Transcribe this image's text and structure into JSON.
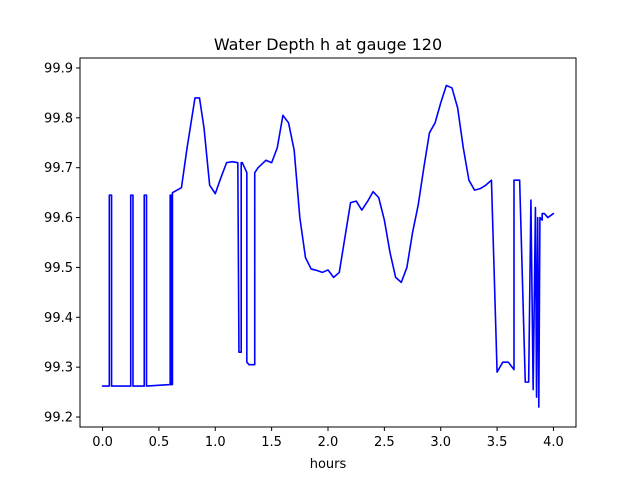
{
  "chart_data": {
    "type": "line",
    "title": "Water Depth h at gauge 120",
    "xlabel": "hours",
    "ylabel": "",
    "xlim": [
      -0.2,
      4.2
    ],
    "ylim": [
      99.18,
      99.92
    ],
    "x_ticks": [
      0.0,
      0.5,
      1.0,
      1.5,
      2.0,
      2.5,
      3.0,
      3.5,
      4.0
    ],
    "x_tick_labels": [
      "0.0",
      "0.5",
      "1.0",
      "1.5",
      "2.0",
      "2.5",
      "3.0",
      "3.5",
      "4.0"
    ],
    "y_ticks": [
      99.2,
      99.3,
      99.4,
      99.5,
      99.6,
      99.7,
      99.8,
      99.9
    ],
    "y_tick_labels": [
      "99.2",
      "99.3",
      "99.4",
      "99.5",
      "99.6",
      "99.7",
      "99.8",
      "99.9"
    ],
    "grid": false,
    "legend": "none",
    "series": [
      {
        "color": "#0000ff",
        "x": [
          0.0,
          0.06,
          0.06,
          0.08,
          0.08,
          0.25,
          0.25,
          0.27,
          0.27,
          0.37,
          0.37,
          0.39,
          0.39,
          0.6,
          0.6,
          0.61,
          0.61,
          0.62,
          0.62,
          0.7,
          0.75,
          0.82,
          0.86,
          0.9,
          0.95,
          1.0,
          1.05,
          1.1,
          1.15,
          1.2,
          1.21,
          1.21,
          1.23,
          1.23,
          1.24,
          1.28,
          1.28,
          1.3,
          1.33,
          1.35,
          1.35,
          1.38,
          1.45,
          1.5,
          1.55,
          1.6,
          1.65,
          1.7,
          1.75,
          1.8,
          1.85,
          1.9,
          1.95,
          2.0,
          2.05,
          2.1,
          2.15,
          2.2,
          2.25,
          2.3,
          2.35,
          2.4,
          2.45,
          2.5,
          2.55,
          2.6,
          2.65,
          2.7,
          2.75,
          2.8,
          2.85,
          2.9,
          2.95,
          3.0,
          3.05,
          3.1,
          3.15,
          3.2,
          3.25,
          3.3,
          3.35,
          3.4,
          3.45,
          3.5,
          3.55,
          3.6,
          3.65,
          3.65,
          3.7,
          3.75,
          3.78,
          3.8,
          3.8,
          3.82,
          3.82,
          3.84,
          3.84,
          3.85,
          3.85,
          3.86,
          3.86,
          3.87,
          3.87,
          3.88,
          3.88,
          3.9,
          3.9,
          3.92,
          3.92,
          3.95,
          4.0
        ],
        "y": [
          99.262,
          99.262,
          99.645,
          99.645,
          99.262,
          99.262,
          99.645,
          99.645,
          99.262,
          99.262,
          99.645,
          99.645,
          99.262,
          99.265,
          99.645,
          99.645,
          99.265,
          99.265,
          99.65,
          99.66,
          99.74,
          99.84,
          99.84,
          99.78,
          99.665,
          99.648,
          99.68,
          99.71,
          99.712,
          99.71,
          99.33,
          99.33,
          99.33,
          99.71,
          99.71,
          99.69,
          99.31,
          99.305,
          99.305,
          99.305,
          99.69,
          99.7,
          99.715,
          99.71,
          99.74,
          99.805,
          99.79,
          99.735,
          99.6,
          99.52,
          99.497,
          99.494,
          99.49,
          99.495,
          99.48,
          99.49,
          99.56,
          99.63,
          99.633,
          99.615,
          99.632,
          99.652,
          99.64,
          99.595,
          99.53,
          99.48,
          99.47,
          99.5,
          99.57,
          99.625,
          99.7,
          99.77,
          99.79,
          99.83,
          99.865,
          99.86,
          99.82,
          99.74,
          99.675,
          99.655,
          99.658,
          99.665,
          99.675,
          99.29,
          99.31,
          99.31,
          99.295,
          99.675,
          99.675,
          99.27,
          99.27,
          99.635,
          99.635,
          99.255,
          99.255,
          99.62,
          99.62,
          99.24,
          99.24,
          99.6,
          99.6,
          99.22,
          99.22,
          99.6,
          99.6,
          99.595,
          99.608,
          99.608,
          99.608,
          99.6,
          99.608
        ]
      }
    ]
  }
}
